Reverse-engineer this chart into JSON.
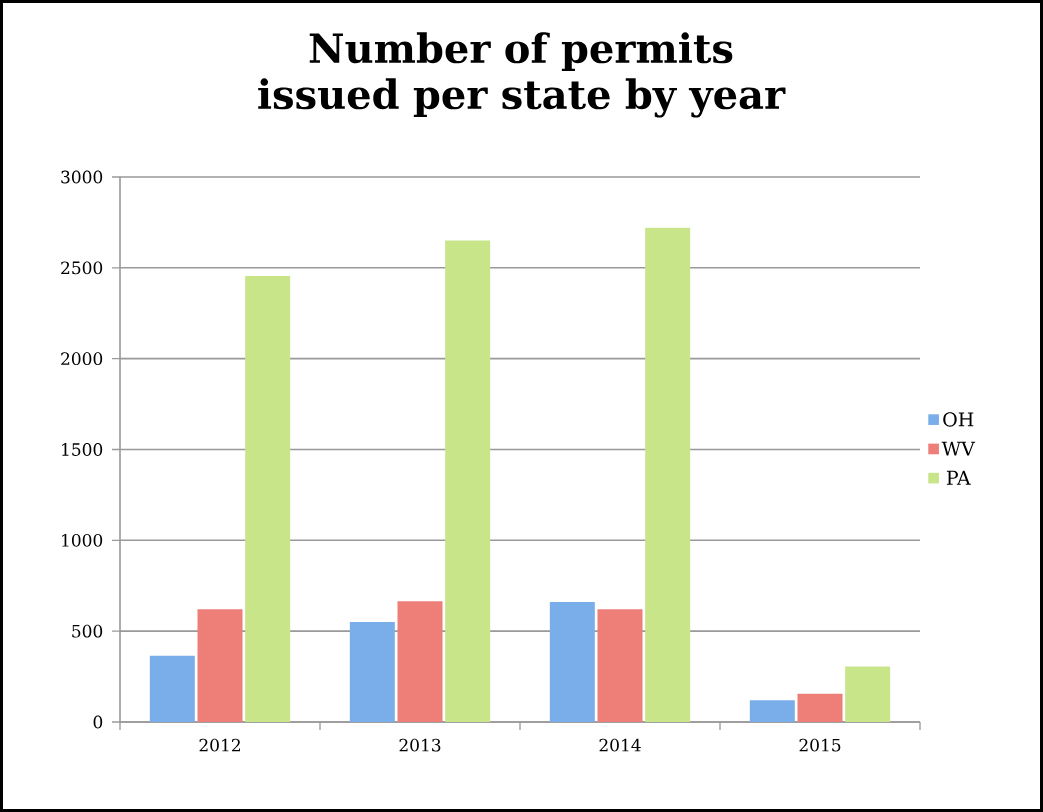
{
  "chart_data": {
    "type": "bar",
    "title": "Number of permits issued per state by year",
    "categories": [
      "2012",
      "2013",
      "2014",
      "2015"
    ],
    "series": [
      {
        "name": "OH",
        "color": "#7aaeea",
        "values": [
          365,
          550,
          660,
          120
        ]
      },
      {
        "name": "WV",
        "color": "#ee7f78",
        "values": [
          620,
          665,
          620,
          155
        ]
      },
      {
        "name": "PA",
        "color": "#c8e58a",
        "values": [
          2455,
          2650,
          2720,
          305
        ]
      }
    ],
    "ylim": [
      0,
      3000
    ],
    "yticks": [
      0,
      500,
      1000,
      1500,
      2000,
      2500,
      3000
    ],
    "grid": "y",
    "legend": "right"
  }
}
